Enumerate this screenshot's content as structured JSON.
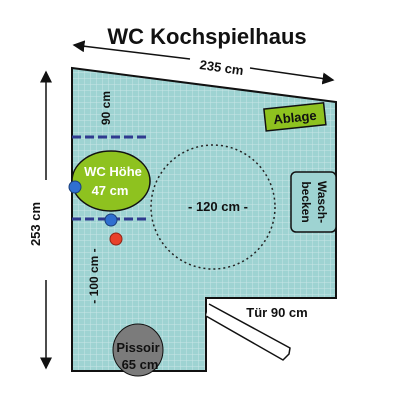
{
  "title": "WC Kochspielhaus",
  "dimensions": {
    "top_width": "235 cm",
    "left_height": "253 cm",
    "upper_gap": "90 cm",
    "lower_gap": "- 100 cm -",
    "turning_circle": "- 120 cm -",
    "door": "Tür 90 cm"
  },
  "fixtures": {
    "shelf": "Ablage",
    "wc_line1": "WC Höhe",
    "wc_line2": "47 cm",
    "sink_line1": "Wasch-",
    "sink_line2": "becken",
    "urinal_line1": "Pissoir",
    "urinal_line2": "65 cm"
  },
  "colors": {
    "floor": "#9ed3d2",
    "tile_line": "#c8e6e6",
    "wall": "#111111",
    "wc": "#8ec21f",
    "shelf": "#8ec21f",
    "sink": "#9ed3d2",
    "urinal": "#7b7b7b",
    "grab_bar": "#2f3a8f",
    "marker_blue": "#2f6fd0",
    "marker_red": "#e8402a"
  },
  "icons": [
    "arrow-icon",
    "door-swing-icon"
  ]
}
